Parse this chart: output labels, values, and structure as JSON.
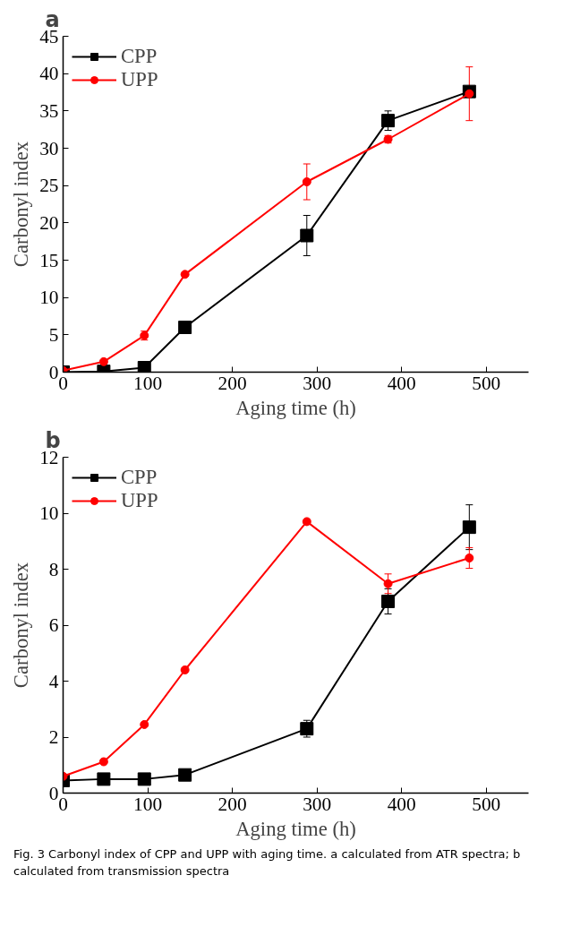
{
  "chart_data": [
    {
      "type": "line",
      "title": "a",
      "xlabel": "Aging time (h)",
      "ylabel": "Carbonyl index",
      "x": [
        0,
        48,
        96,
        144,
        288,
        384,
        480
      ],
      "xlim": [
        0,
        550
      ],
      "xticks": [
        0,
        100,
        200,
        300,
        400,
        500
      ],
      "ylim": [
        0,
        45
      ],
      "yticks": [
        0,
        5,
        10,
        15,
        20,
        25,
        30,
        35,
        40,
        45
      ],
      "grid": false,
      "legend": "top left",
      "series": [
        {
          "name": "CPP",
          "color": "#000000",
          "marker": "square",
          "values": [
            0,
            0.1,
            0.6,
            6.0,
            18.3,
            33.7,
            37.6
          ],
          "errors": [
            null,
            null,
            null,
            0.8,
            2.7,
            1.3,
            0.5
          ]
        },
        {
          "name": "UPP",
          "color": "#ff0000",
          "marker": "circle",
          "values": [
            0.2,
            1.4,
            4.9,
            13.1,
            25.5,
            31.2,
            37.3
          ],
          "errors": [
            null,
            null,
            0.6,
            null,
            2.4,
            0.5,
            3.6
          ]
        }
      ]
    },
    {
      "type": "line",
      "title": "b",
      "xlabel": "Aging time (h)",
      "ylabel": "Carbonyl index",
      "x": [
        0,
        48,
        96,
        144,
        288,
        384,
        480
      ],
      "xlim": [
        0,
        550
      ],
      "xticks": [
        0,
        100,
        200,
        300,
        400,
        500
      ],
      "ylim": [
        0,
        12
      ],
      "yticks": [
        0,
        2,
        4,
        6,
        8,
        10,
        12
      ],
      "grid": false,
      "legend": "top left",
      "annotations": [
        "Fig. 3  Carbonyl index of CPP and UPP with aging time. a calculated from ATR spectra; b calculated from transmission spectra"
      ],
      "series": [
        {
          "name": "CPP",
          "color": "#000000",
          "marker": "square",
          "values": [
            0.45,
            0.5,
            0.5,
            0.65,
            2.3,
            6.85,
            9.5
          ],
          "errors": [
            null,
            null,
            null,
            null,
            0.3,
            0.45,
            0.8
          ]
        },
        {
          "name": "UPP",
          "color": "#ff0000",
          "marker": "circle",
          "values": [
            0.6,
            1.12,
            2.45,
            4.4,
            9.7,
            7.48,
            8.4
          ],
          "errors": [
            null,
            null,
            null,
            null,
            null,
            0.35,
            0.37
          ]
        }
      ]
    }
  ]
}
